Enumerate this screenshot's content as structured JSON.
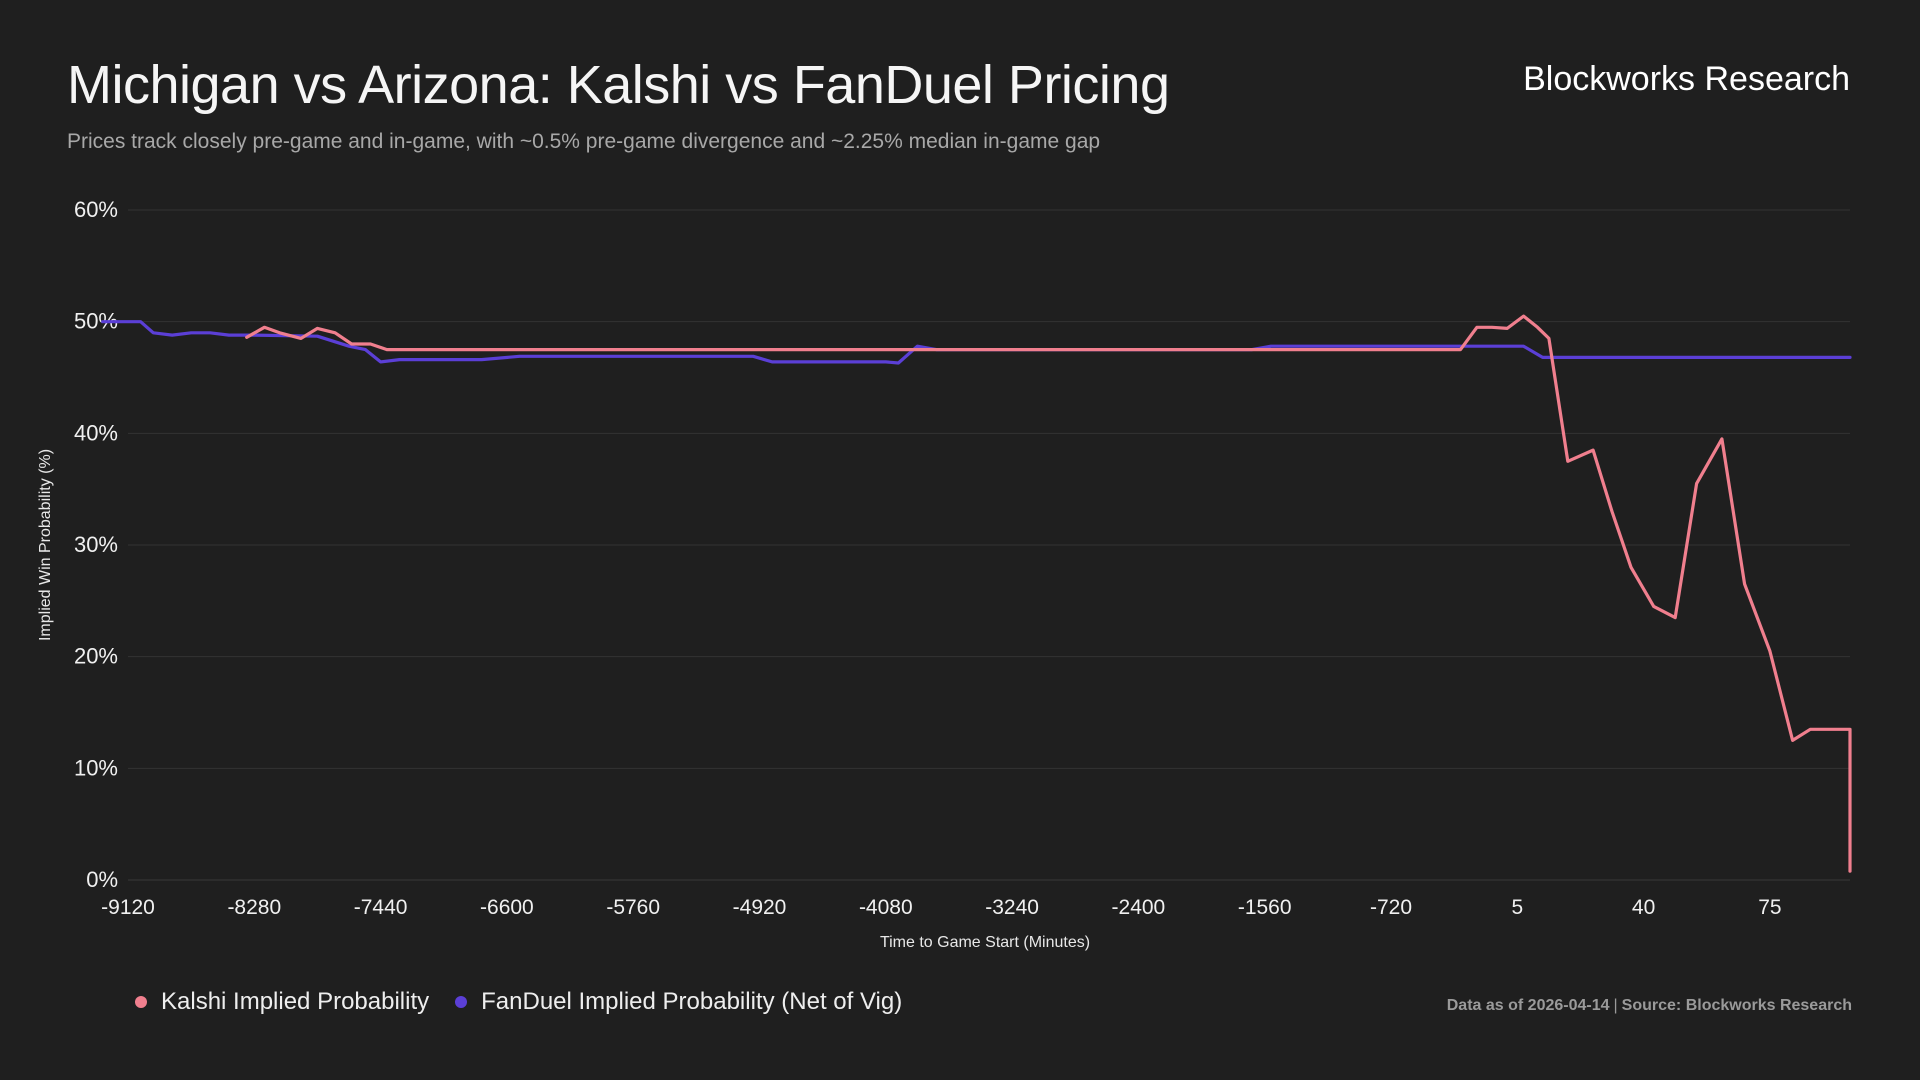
{
  "header": {
    "title": "Michigan vs Arizona: Kalshi vs FanDuel Pricing",
    "subtitle": "Prices track closely pre-game and in-game, with ~0.5% pre-game divergence and ~2.25% median in-game gap",
    "brand": "Blockworks Research"
  },
  "footer": {
    "data_as_of": "Data as of 2026-04-14",
    "separator": "|",
    "source": "Source: Blockworks Research"
  },
  "colors": {
    "background": "#1f1f1f",
    "kalshi": "#f07f8e",
    "fanduel": "#5b3fd6",
    "grid": "#333333"
  },
  "chart_data": {
    "type": "line",
    "xlabel": "Time to Game Start (Minutes)",
    "ylabel": "Implied Win Probability (%)",
    "x_ticks": [
      "-9120",
      "-8280",
      "-7440",
      "-6600",
      "-5760",
      "-4920",
      "-4080",
      "-3240",
      "-2400",
      "-1560",
      "-720",
      "5",
      "40",
      "75"
    ],
    "x_ticks_note": "categorical axis; x values are tick indices (0 = -9120 ... 13 = 75)",
    "y_ticks": [
      "0%",
      "10%",
      "20%",
      "30%",
      "40%",
      "50%",
      "60%"
    ],
    "ylim": [
      0,
      60
    ],
    "grid": true,
    "legend_position": "bottom-left",
    "series": [
      {
        "name": "Kalshi Implied Probability",
        "color": "#f07f8e",
        "points": [
          [
            0.94,
            48.6
          ],
          [
            1.08,
            49.5
          ],
          [
            1.2,
            49.0
          ],
          [
            1.37,
            48.5
          ],
          [
            1.5,
            49.4
          ],
          [
            1.64,
            49.0
          ],
          [
            1.77,
            48.0
          ],
          [
            1.92,
            48.0
          ],
          [
            2.05,
            47.5
          ],
          [
            3.0,
            47.5
          ],
          [
            4.0,
            47.5
          ],
          [
            5.0,
            47.5
          ],
          [
            6.0,
            47.5
          ],
          [
            7.0,
            47.5
          ],
          [
            8.0,
            47.5
          ],
          [
            9.0,
            47.5
          ],
          [
            10.0,
            47.5
          ],
          [
            10.55,
            47.5
          ],
          [
            10.68,
            49.5
          ],
          [
            10.8,
            49.5
          ],
          [
            10.92,
            49.4
          ],
          [
            11.05,
            50.5
          ],
          [
            11.16,
            49.5
          ],
          [
            11.25,
            48.5
          ],
          [
            11.4,
            37.5
          ],
          [
            11.6,
            38.5
          ],
          [
            11.75,
            33.0
          ],
          [
            11.9,
            28.0
          ],
          [
            12.08,
            24.5
          ],
          [
            12.25,
            23.5
          ],
          [
            12.42,
            35.5
          ],
          [
            12.62,
            39.5
          ],
          [
            12.8,
            26.5
          ],
          [
            13.0,
            20.5
          ],
          [
            13.18,
            12.5
          ],
          [
            13.32,
            13.5
          ],
          [
            13.5,
            13.5
          ],
          [
            13.7,
            13.5
          ],
          [
            13.9,
            13.5
          ],
          [
            14.3,
            13.5
          ],
          [
            14.42,
            4.5
          ],
          [
            14.62,
            6.5
          ],
          [
            14.78,
            0.8
          ]
        ]
      },
      {
        "name": "FanDuel Implied Probability (Net of Vig)",
        "color": "#5b3fd6",
        "points": [
          [
            -0.2,
            50.0
          ],
          [
            0.0,
            50.0
          ],
          [
            0.1,
            50.0
          ],
          [
            0.2,
            49.0
          ],
          [
            0.35,
            48.8
          ],
          [
            0.5,
            49.0
          ],
          [
            0.65,
            49.0
          ],
          [
            0.8,
            48.8
          ],
          [
            1.0,
            48.8
          ],
          [
            1.5,
            48.7
          ],
          [
            1.75,
            47.8
          ],
          [
            1.88,
            47.5
          ],
          [
            2.0,
            46.4
          ],
          [
            2.15,
            46.6
          ],
          [
            2.4,
            46.6
          ],
          [
            2.8,
            46.6
          ],
          [
            3.1,
            46.9
          ],
          [
            4.0,
            46.9
          ],
          [
            4.95,
            46.9
          ],
          [
            5.1,
            46.4
          ],
          [
            5.3,
            46.4
          ],
          [
            6.0,
            46.4
          ],
          [
            6.1,
            46.3
          ],
          [
            6.25,
            47.8
          ],
          [
            6.4,
            47.5
          ],
          [
            7.0,
            47.5
          ],
          [
            8.0,
            47.5
          ],
          [
            8.9,
            47.5
          ],
          [
            9.05,
            47.8
          ],
          [
            10.0,
            47.8
          ],
          [
            11.05,
            47.8
          ],
          [
            11.2,
            46.8
          ],
          [
            12.0,
            46.8
          ],
          [
            13.0,
            46.8
          ],
          [
            14.0,
            46.8
          ],
          [
            14.0,
            46.8
          ]
        ]
      }
    ]
  }
}
